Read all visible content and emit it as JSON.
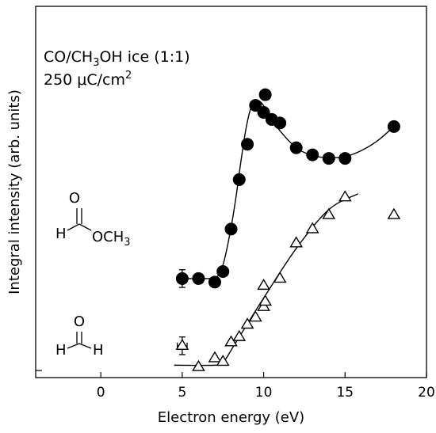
{
  "chart_data": {
    "type": "scatter",
    "xlabel": "Electron energy (eV)",
    "ylabel": "Integral intensity (arb. units)",
    "xlim": [
      -4,
      20
    ],
    "ylim": [
      -0.2,
      10.3
    ],
    "xticks": [
      0,
      5,
      10,
      15,
      20
    ],
    "xtick_labels": [
      "0",
      "5",
      "10",
      "15",
      "20"
    ],
    "yticks_visible": [
      0
    ],
    "annotation": {
      "line1_prefix": "CO/CH",
      "line1_sub": "3",
      "line1_suffix": "OH ice (1:1)",
      "line2_prefix": "250 μC/cm",
      "line2_sup": "2"
    },
    "molecule_methyl_formate": {
      "o": "O",
      "h": "H",
      "och3_prefix": "OCH",
      "och3_sub": "3"
    },
    "molecule_formaldehyde": {
      "o": "O",
      "h_left": "H",
      "h_right": "H"
    },
    "series": [
      {
        "marker": "filled-circle",
        "x": [
          5,
          6,
          7,
          7.5,
          8,
          8.5,
          9,
          9.5,
          10,
          10.1,
          10.5,
          11,
          12,
          13,
          14,
          15,
          18
        ],
        "y": [
          2.6,
          2.6,
          2.5,
          2.8,
          4.0,
          5.4,
          6.4,
          7.5,
          7.3,
          7.8,
          7.1,
          7.0,
          6.3,
          6.1,
          6.0,
          6.0,
          6.9
        ],
        "error_points": [
          {
            "x": 5,
            "y": 2.6,
            "xerr": 0.3,
            "yerr": 0.25
          }
        ],
        "fit_x": [
          5,
          6,
          6.5,
          7,
          7.3,
          7.6,
          8,
          8.3,
          8.6,
          8.9,
          9.2,
          9.5,
          9.8,
          10.1,
          10.5,
          11,
          12,
          13,
          14,
          15,
          16,
          17,
          18
        ],
        "fit_y": [
          2.6,
          2.6,
          2.6,
          2.62,
          2.75,
          3.15,
          4.05,
          4.9,
          5.9,
          6.8,
          7.4,
          7.62,
          7.6,
          7.42,
          7.13,
          6.78,
          6.3,
          6.08,
          6.02,
          6.05,
          6.22,
          6.5,
          6.9
        ]
      },
      {
        "marker": "open-triangle",
        "x": [
          5,
          6,
          7,
          7.5,
          8,
          8.5,
          9,
          9.5,
          10,
          10,
          10.1,
          11,
          12,
          13,
          14,
          15,
          18
        ],
        "y": [
          0.7,
          0.1,
          0.35,
          0.25,
          0.8,
          0.95,
          1.3,
          1.5,
          1.8,
          2.4,
          1.95,
          2.6,
          3.6,
          4.0,
          4.4,
          4.9,
          4.4
        ],
        "error_points": [
          {
            "x": 5,
            "y": 0.7,
            "xerr": 0.3,
            "yerr": 0.25
          }
        ],
        "fit_x": [
          4.5,
          7,
          7.5,
          8.3,
          10,
          12,
          14,
          15.8
        ],
        "fit_y": [
          0.15,
          0.15,
          0.22,
          0.8,
          2.05,
          3.45,
          4.55,
          5.0
        ]
      }
    ]
  }
}
